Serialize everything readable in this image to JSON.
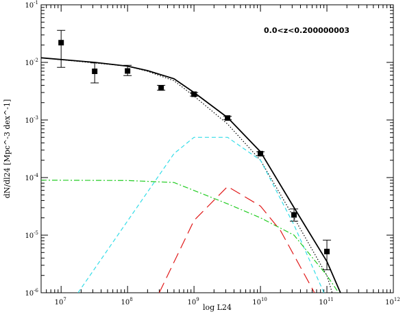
{
  "chart_data": {
    "type": "line",
    "xlabel": "log L24",
    "ylabel": "dN/dl24 [Mpc^-3 dex^-1]",
    "annotation": "0.0<z<0.200000003",
    "x_scale": "log",
    "y_scale": "log",
    "xlim": [
      5000000.0,
      1000000000000.0
    ],
    "ylim": [
      1e-06,
      0.1
    ],
    "x_ticks": [
      {
        "value": 10000000.0,
        "mant": "10",
        "exp": "7"
      },
      {
        "value": 100000000.0,
        "mant": "10",
        "exp": "8"
      },
      {
        "value": 1000000000.0,
        "mant": "10",
        "exp": "9"
      },
      {
        "value": 10000000000.0,
        "mant": "10",
        "exp": "10"
      },
      {
        "value": 100000000000.0,
        "mant": "10",
        "exp": "11"
      },
      {
        "value": 1000000000000.0,
        "mant": "10",
        "exp": "12"
      }
    ],
    "y_ticks": [
      {
        "value": 1e-06,
        "mant": "10",
        "exp": "-6"
      },
      {
        "value": 1e-05,
        "mant": "10",
        "exp": "-5"
      },
      {
        "value": 0.0001,
        "mant": "10",
        "exp": "-4"
      },
      {
        "value": 0.001,
        "mant": "10",
        "exp": "-3"
      },
      {
        "value": 0.01,
        "mant": "10",
        "exp": "-2"
      },
      {
        "value": 0.1,
        "mant": "10",
        "exp": "-1"
      }
    ],
    "grid": false,
    "points": [
      {
        "x": 10000000.0,
        "y": 0.022,
        "ylo": 0.0082,
        "yhi": 0.036
      },
      {
        "x": 32000000.0,
        "y": 0.007,
        "ylo": 0.0044,
        "yhi": 0.0098
      },
      {
        "x": 100000000.0,
        "y": 0.0071,
        "ylo": 0.0059,
        "yhi": 0.0089
      },
      {
        "x": 320000000.0,
        "y": 0.0036,
        "ylo": 0.0033,
        "yhi": 0.004
      },
      {
        "x": 1000000000.0,
        "y": 0.0028,
        "ylo": 0.0026,
        "yhi": 0.003
      },
      {
        "x": 3200000000.0,
        "y": 0.00108,
        "ylo": 0.00101,
        "yhi": 0.00116
      },
      {
        "x": 10000000000.0,
        "y": 0.00026,
        "ylo": 0.00024,
        "yhi": 0.00028
      },
      {
        "x": 32000000000.0,
        "y": 2.25e-05,
        "ylo": 1.75e-05,
        "yhi": 2.85e-05
      },
      {
        "x": 100000000000.0,
        "y": 5.2e-06,
        "ylo": 2.5e-06,
        "yhi": 8.2e-06
      }
    ],
    "series": [
      {
        "style": "solid",
        "color": "#000000",
        "x": [
          5000000.0,
          32000000.0,
          100000000.0,
          200000000.0,
          500000000.0,
          1000000000.0,
          3200000000.0,
          10000000000.0,
          32000000000.0,
          100000000000.0,
          160000000000.0
        ],
        "y": [
          0.012,
          0.01,
          0.0086,
          0.0072,
          0.0052,
          0.003,
          0.0011,
          0.00028,
          3e-05,
          3.5e-06,
          1e-06
        ]
      },
      {
        "style": "dotted",
        "color": "#000000",
        "x": [
          5000000.0,
          100000000.0,
          200000000.0,
          500000000.0,
          1000000000.0,
          3200000000.0,
          10000000000.0,
          32000000000.0,
          100000000000.0,
          120000000000.0
        ],
        "y": [
          0.012,
          0.0086,
          0.007,
          0.0048,
          0.0026,
          0.00085,
          0.0002,
          2e-05,
          2e-06,
          1e-06
        ]
      },
      {
        "style": "short-dash",
        "color": "#33dde8",
        "x": [
          18000000.0,
          500000000.0,
          1000000000.0,
          3200000000.0,
          10000000000.0,
          32000000000.0,
          90000000000.0
        ],
        "y": [
          1e-06,
          0.00026,
          0.0005,
          0.0005,
          0.0002,
          1.5e-05,
          1e-06
        ]
      },
      {
        "style": "dash-dot",
        "color": "#22cc22",
        "x": [
          5000000.0,
          100000000.0,
          500000000.0,
          3200000000.0,
          10000000000.0,
          32000000000.0,
          100000000000.0,
          150000000000.0
        ],
        "y": [
          9e-05,
          8.9e-05,
          8.2e-05,
          3.5e-05,
          2e-05,
          1e-05,
          2e-06,
          1e-06
        ]
      },
      {
        "style": "long-dash",
        "color": "#e01818",
        "x": [
          300000000.0,
          1000000000.0,
          3200000000.0,
          10000000000.0,
          20000000000.0,
          65000000000.0
        ],
        "y": [
          1e-06,
          1.8e-05,
          7e-05,
          3.2e-05,
          1.2e-05,
          1e-06
        ]
      }
    ]
  }
}
